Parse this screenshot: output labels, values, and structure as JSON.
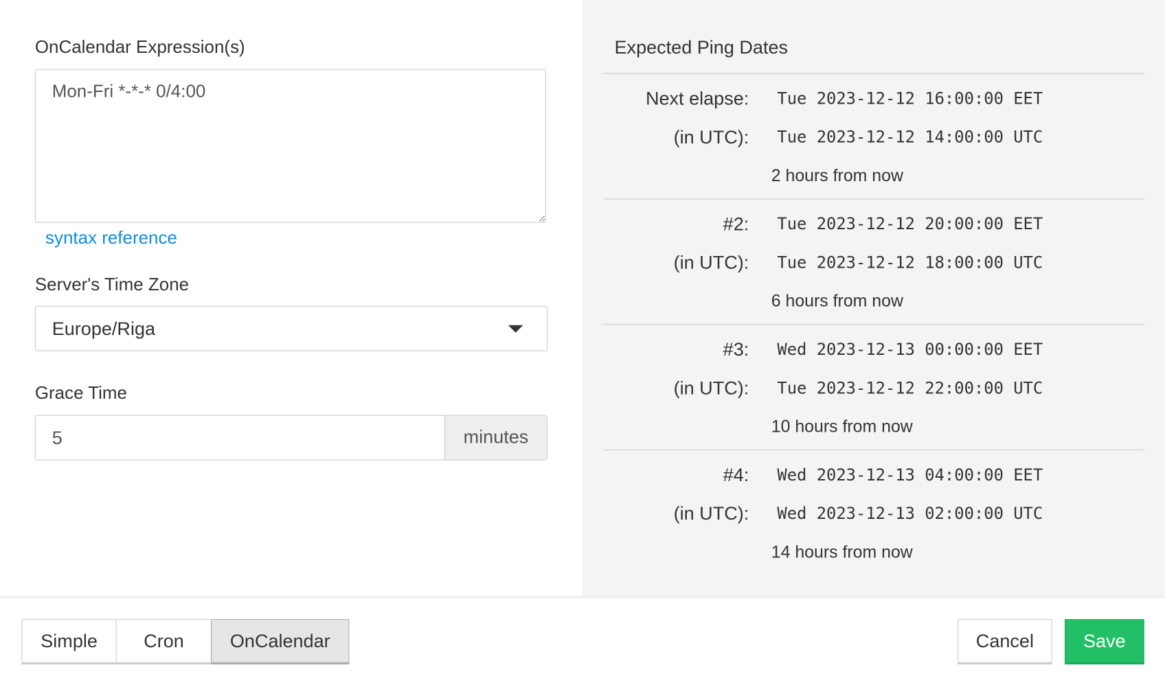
{
  "form": {
    "expression_label": "OnCalendar Expression(s)",
    "expression_value": "Mon-Fri *-*-* 0/4:00",
    "syntax_link": "syntax reference",
    "tz_label": "Server's Time Zone",
    "tz_value": "Europe/Riga",
    "grace_label": "Grace Time",
    "grace_value": "5",
    "grace_unit": "minutes"
  },
  "preview": {
    "title": "Expected Ping Dates",
    "items": [
      {
        "label": "Next elapse:",
        "local": "Tue 2023-12-12 16:00:00 EET",
        "utc_label": "(in UTC):",
        "utc": "Tue 2023-12-12 14:00:00 UTC",
        "relative": "2 hours from now"
      },
      {
        "label": "#2:",
        "local": "Tue 2023-12-12 20:00:00 EET",
        "utc_label": "(in UTC):",
        "utc": "Tue 2023-12-12 18:00:00 UTC",
        "relative": "6 hours from now"
      },
      {
        "label": "#3:",
        "local": "Wed 2023-12-13 00:00:00 EET",
        "utc_label": "(in UTC):",
        "utc": "Tue 2023-12-12 22:00:00 UTC",
        "relative": "10 hours from now"
      },
      {
        "label": "#4:",
        "local": "Wed 2023-12-13 04:00:00 EET",
        "utc_label": "(in UTC):",
        "utc": "Wed 2023-12-13 02:00:00 UTC",
        "relative": "14 hours from now"
      }
    ]
  },
  "footer": {
    "modes": [
      "Simple",
      "Cron",
      "OnCalendar"
    ],
    "active_mode": "OnCalendar",
    "cancel": "Cancel",
    "save": "Save"
  },
  "colors": {
    "save": "#22bf66",
    "link": "#0f8de0",
    "panel": "#f4f4f4"
  }
}
